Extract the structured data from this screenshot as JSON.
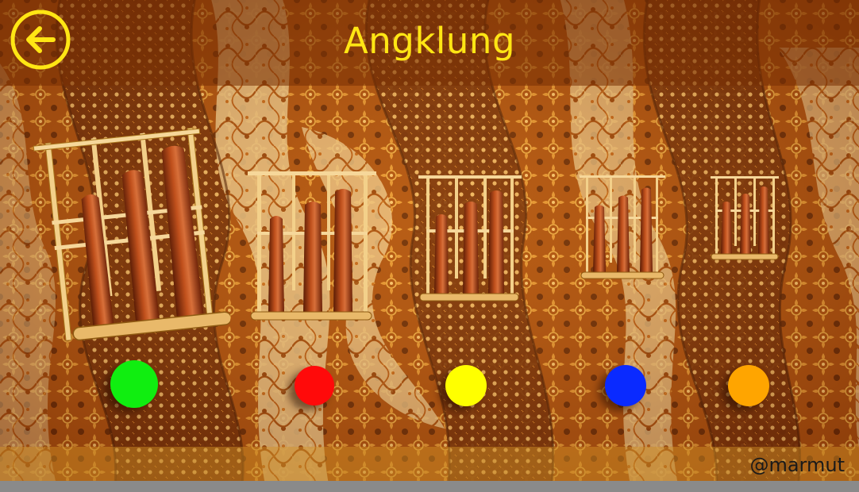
{
  "header": {
    "title": "Angklung",
    "back_icon": "arrow-left-circle-icon",
    "accent_color": "#ffe614"
  },
  "instruments": [
    {
      "id": "angklung-1",
      "button_color": "#10ee10"
    },
    {
      "id": "angklung-2",
      "button_color": "#ff0a0a"
    },
    {
      "id": "angklung-3",
      "button_color": "#ffff00"
    },
    {
      "id": "angklung-4",
      "button_color": "#0a2aff"
    },
    {
      "id": "angklung-5",
      "button_color": "#ffa500"
    }
  ],
  "footer": {
    "credit": "@marmut"
  }
}
